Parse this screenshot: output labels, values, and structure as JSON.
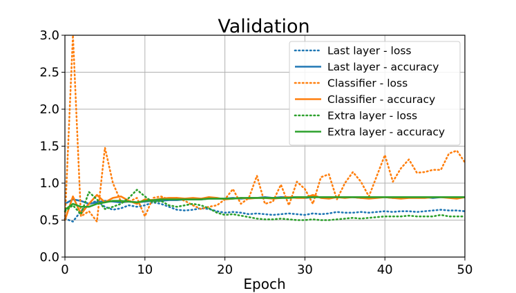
{
  "chart_data": {
    "type": "line",
    "title": "Validation",
    "xlabel": "Epoch",
    "ylabel": "",
    "xlim": [
      0,
      50
    ],
    "ylim": [
      0.0,
      3.0
    ],
    "grid": true,
    "legend_position": "top-right",
    "x_ticks": [
      0,
      10,
      20,
      30,
      40,
      50
    ],
    "x_tick_labels": [
      "0",
      "10",
      "20",
      "30",
      "40",
      "50"
    ],
    "y_ticks": [
      0.0,
      0.5,
      1.0,
      1.5,
      2.0,
      2.5,
      3.0
    ],
    "y_tick_labels": [
      "0.0",
      "0.5",
      "1.0",
      "1.5",
      "2.0",
      "2.5",
      "3.0"
    ],
    "x": [
      0,
      1,
      2,
      3,
      4,
      5,
      6,
      7,
      8,
      9,
      10,
      11,
      12,
      13,
      14,
      15,
      16,
      17,
      18,
      19,
      20,
      21,
      22,
      23,
      24,
      25,
      26,
      27,
      28,
      29,
      30,
      31,
      32,
      33,
      34,
      35,
      36,
      37,
      38,
      39,
      40,
      41,
      42,
      43,
      44,
      45,
      46,
      47,
      48,
      49,
      50
    ],
    "series": [
      {
        "name": "Last layer - loss",
        "color": "#1f77b4",
        "style": "dotted",
        "values": [
          0.52,
          0.48,
          0.62,
          0.72,
          0.76,
          0.68,
          0.64,
          0.66,
          0.7,
          0.68,
          0.7,
          0.74,
          0.72,
          0.68,
          0.64,
          0.63,
          0.64,
          0.66,
          0.65,
          0.62,
          0.6,
          0.61,
          0.6,
          0.58,
          0.59,
          0.58,
          0.57,
          0.58,
          0.59,
          0.58,
          0.57,
          0.59,
          0.58,
          0.59,
          0.61,
          0.6,
          0.6,
          0.61,
          0.6,
          0.61,
          0.62,
          0.61,
          0.62,
          0.62,
          0.61,
          0.62,
          0.63,
          0.64,
          0.63,
          0.63,
          0.62
        ]
      },
      {
        "name": "Last layer - accuracy",
        "color": "#1f77b4",
        "style": "solid",
        "values": [
          0.72,
          0.78,
          0.76,
          0.72,
          0.74,
          0.76,
          0.75,
          0.74,
          0.75,
          0.74,
          0.75,
          0.76,
          0.76,
          0.77,
          0.77,
          0.78,
          0.78,
          0.78,
          0.79,
          0.79,
          0.79,
          0.8,
          0.79,
          0.8,
          0.8,
          0.81,
          0.8,
          0.81,
          0.81,
          0.81,
          0.8,
          0.81,
          0.81,
          0.81,
          0.81,
          0.81,
          0.81,
          0.8,
          0.81,
          0.81,
          0.81,
          0.8,
          0.81,
          0.81,
          0.81,
          0.81,
          0.8,
          0.81,
          0.81,
          0.81,
          0.81
        ]
      },
      {
        "name": "Classifier - loss",
        "color": "#ff7f0e",
        "style": "dotted",
        "values": [
          0.5,
          3.0,
          0.55,
          0.62,
          0.48,
          1.48,
          1.0,
          0.75,
          0.75,
          0.8,
          0.55,
          0.8,
          0.82,
          0.78,
          0.8,
          0.76,
          0.7,
          0.65,
          0.68,
          0.7,
          0.78,
          0.92,
          0.72,
          0.8,
          1.1,
          0.72,
          0.75,
          0.98,
          0.7,
          1.02,
          0.92,
          0.72,
          1.08,
          1.12,
          0.78,
          1.0,
          1.15,
          1.02,
          0.82,
          1.1,
          1.38,
          1.02,
          1.2,
          1.32,
          1.14,
          1.15,
          1.18,
          1.18,
          1.4,
          1.44,
          1.28
        ]
      },
      {
        "name": "Classifier - accuracy",
        "color": "#ff7f0e",
        "style": "solid",
        "values": [
          0.5,
          0.82,
          0.58,
          0.72,
          0.84,
          0.74,
          0.8,
          0.82,
          0.76,
          0.72,
          0.78,
          0.77,
          0.79,
          0.8,
          0.8,
          0.79,
          0.8,
          0.79,
          0.81,
          0.8,
          0.78,
          0.79,
          0.8,
          0.79,
          0.8,
          0.8,
          0.79,
          0.8,
          0.81,
          0.8,
          0.8,
          0.84,
          0.8,
          0.79,
          0.81,
          0.8,
          0.81,
          0.8,
          0.79,
          0.8,
          0.81,
          0.8,
          0.79,
          0.8,
          0.8,
          0.8,
          0.81,
          0.81,
          0.8,
          0.79,
          0.81
        ]
      },
      {
        "name": "Extra layer - loss",
        "color": "#2ca02c",
        "style": "dotted",
        "values": [
          0.62,
          0.7,
          0.58,
          0.88,
          0.78,
          0.65,
          0.68,
          0.72,
          0.8,
          0.91,
          0.82,
          0.74,
          0.76,
          0.7,
          0.68,
          0.7,
          0.72,
          0.7,
          0.66,
          0.6,
          0.57,
          0.58,
          0.56,
          0.54,
          0.52,
          0.51,
          0.51,
          0.52,
          0.51,
          0.5,
          0.5,
          0.51,
          0.5,
          0.5,
          0.51,
          0.52,
          0.53,
          0.52,
          0.53,
          0.54,
          0.55,
          0.55,
          0.55,
          0.56,
          0.55,
          0.55,
          0.55,
          0.57,
          0.55,
          0.55,
          0.55
        ]
      },
      {
        "name": "Extra layer - accuracy",
        "color": "#2ca02c",
        "style": "solid",
        "values": [
          0.64,
          0.72,
          0.68,
          0.68,
          0.72,
          0.74,
          0.76,
          0.76,
          0.75,
          0.74,
          0.76,
          0.77,
          0.78,
          0.78,
          0.78,
          0.78,
          0.78,
          0.78,
          0.79,
          0.79,
          0.79,
          0.79,
          0.8,
          0.8,
          0.8,
          0.8,
          0.8,
          0.8,
          0.8,
          0.81,
          0.81,
          0.81,
          0.81,
          0.81,
          0.81,
          0.81,
          0.81,
          0.81,
          0.81,
          0.81,
          0.81,
          0.81,
          0.81,
          0.81,
          0.81,
          0.81,
          0.81,
          0.81,
          0.81,
          0.81,
          0.81
        ]
      }
    ]
  }
}
